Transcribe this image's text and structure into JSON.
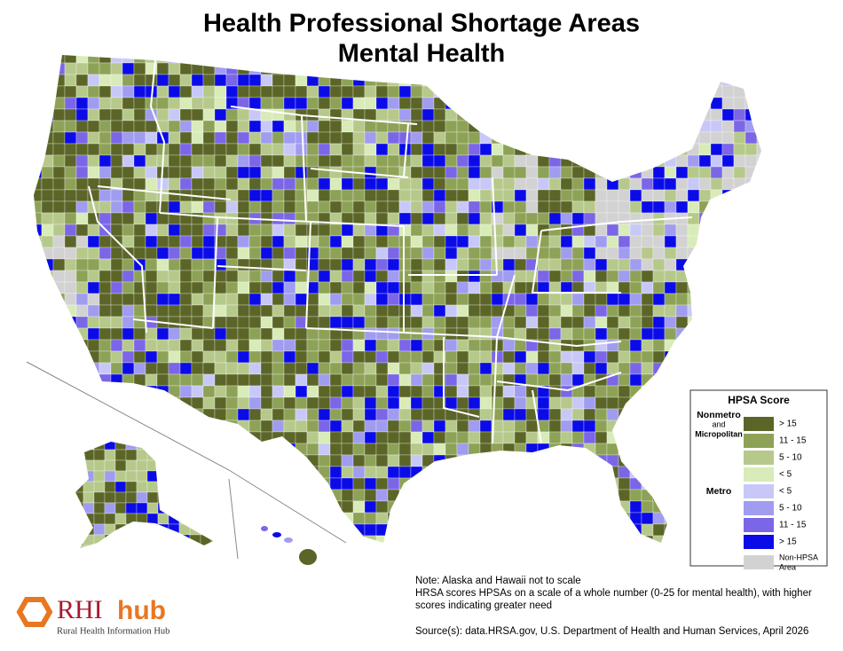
{
  "title": [
    "Health Professional Shortage Areas",
    "Mental Health"
  ],
  "legend": {
    "title": "HPSA Score",
    "groups": [
      {
        "label": [
          "Nonmetro",
          "and",
          "Micropolitan"
        ],
        "items": [
          {
            "label": "> 15",
            "color": "#5b6527"
          },
          {
            "label": "11 - 15",
            "color": "#8ea257"
          },
          {
            "label": "5 - 10",
            "color": "#b6c98b"
          },
          {
            "label": "< 5",
            "color": "#d8ebb8"
          }
        ]
      },
      {
        "label": [
          "Metro"
        ],
        "items": [
          {
            "label": "< 5",
            "color": "#c8c8f8"
          },
          {
            "label": "5 - 10",
            "color": "#a09cf0"
          },
          {
            "label": "11 - 15",
            "color": "#7a66e6"
          },
          {
            "label": "> 15",
            "color": "#0b0be8"
          }
        ]
      }
    ],
    "other": {
      "label": [
        "Non-HPSA",
        "Area"
      ],
      "color": "#d2d2d2"
    }
  },
  "notes": [
    "Note: Alaska and Hawaii not to scale",
    "HRSA scores HPSAs on a scale of a whole number (0-25 for mental health), with higher",
    "scores indicating greater need"
  ],
  "source": "Source(s): data.HRSA.gov, U.S. Department of Health and Human Services, April 2026",
  "logo": {
    "name": [
      "RHI",
      "hub"
    ],
    "tagline": "Rural Health Information Hub"
  }
}
